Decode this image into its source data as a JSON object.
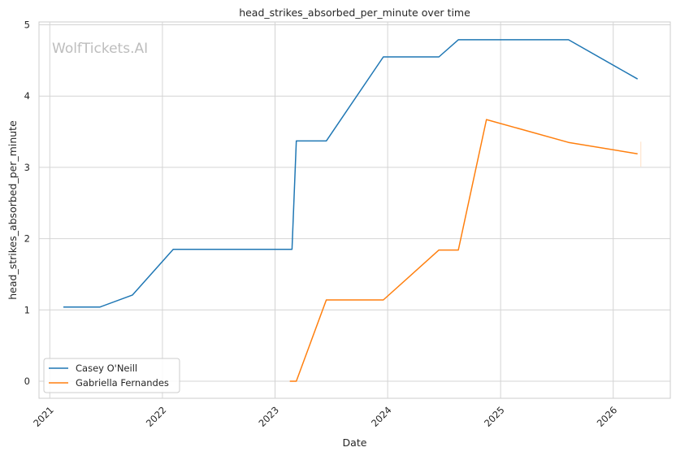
{
  "chart_data": {
    "type": "line",
    "title": "head_strikes_absorbed_per_minute over time",
    "xlabel": "Date",
    "ylabel": "head_strikes_absorbed_per_minute",
    "x_tick_labels": [
      "2021",
      "2022",
      "2023",
      "2024",
      "2025",
      "2026"
    ],
    "y_tick_labels": [
      "0",
      "1",
      "2",
      "3",
      "4",
      "5"
    ],
    "x_range": [
      "2020-11-27",
      "2026-07-05"
    ],
    "ylim": [
      -0.24,
      5.04
    ],
    "grid": true,
    "legend_position": "lower-left",
    "watermark": "WolfTickets.AI",
    "series": [
      {
        "name": "Casey O'Neill",
        "color": "#1f77b4",
        "points": [
          {
            "x": "2021-02-14",
            "y": 1.04
          },
          {
            "x": "2021-06-12",
            "y": 1.04
          },
          {
            "x": "2021-09-26",
            "y": 1.21
          },
          {
            "x": "2022-02-05",
            "y": 1.85
          },
          {
            "x": "2023-02-25",
            "y": 1.85
          },
          {
            "x": "2023-03-11",
            "y": 3.37
          },
          {
            "x": "2023-06-16",
            "y": 3.37
          },
          {
            "x": "2023-12-18",
            "y": 4.55
          },
          {
            "x": "2024-06-15",
            "y": 4.55
          },
          {
            "x": "2024-08-17",
            "y": 4.79
          },
          {
            "x": "2025-08-09",
            "y": 4.79
          },
          {
            "x": "2026-03-21",
            "y": 4.24
          }
        ]
      },
      {
        "name": "Gabriella Fernandes",
        "color": "#ff7f0e",
        "points": [
          {
            "x": "2023-02-18",
            "y": 0.0
          },
          {
            "x": "2023-03-11",
            "y": 0.0
          },
          {
            "x": "2023-06-16",
            "y": 1.14
          },
          {
            "x": "2023-12-18",
            "y": 1.14
          },
          {
            "x": "2024-06-15",
            "y": 1.84
          },
          {
            "x": "2024-08-17",
            "y": 1.84
          },
          {
            "x": "2024-11-16",
            "y": 3.67
          },
          {
            "x": "2025-08-09",
            "y": 3.35
          },
          {
            "x": "2026-03-21",
            "y": 3.19
          }
        ],
        "error_band": {
          "x": "2026-03-21",
          "y_low": 3.01,
          "y_high": 3.36
        }
      }
    ]
  }
}
